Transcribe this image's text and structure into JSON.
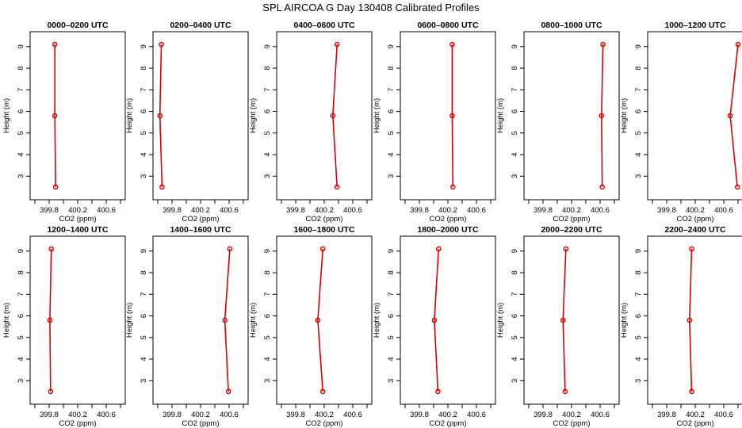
{
  "page": {
    "title": "SPL AIRCOA G  Day 130408  Calibrated Profiles"
  },
  "colors": {
    "series": "#dd0000",
    "axes": "#000000",
    "background": "#ffffff"
  },
  "chart_data": [
    {
      "type": "line",
      "title": "0000–0200 UTC",
      "xlabel": "CO2 (ppm)",
      "ylabel": "Height (m)",
      "xlim": [
        399.6,
        400.8
      ],
      "ylim": [
        2.3,
        9.3
      ],
      "xticks": [
        "399.8",
        "400.2",
        "400.6"
      ],
      "yticks": [
        "3",
        "4",
        "5",
        "6",
        "7",
        "8",
        "9"
      ],
      "grid": false,
      "x": [
        399.88,
        399.88,
        399.89
      ],
      "y": [
        9.1,
        5.8,
        2.5
      ]
    },
    {
      "type": "line",
      "title": "0200–0400 UTC",
      "xlabel": "CO2 (ppm)",
      "ylabel": "Height (m)",
      "xlim": [
        399.6,
        400.8
      ],
      "ylim": [
        2.3,
        9.3
      ],
      "xticks": [
        "399.8",
        "400.2",
        "400.6"
      ],
      "yticks": [
        "3",
        "4",
        "5",
        "6",
        "7",
        "8",
        "9"
      ],
      "grid": false,
      "x": [
        399.65,
        399.63,
        399.66
      ],
      "y": [
        9.1,
        5.8,
        2.5
      ]
    },
    {
      "type": "line",
      "title": "0400–0600 UTC",
      "xlabel": "CO2 (ppm)",
      "ylabel": "Height (m)",
      "xlim": [
        399.6,
        400.8
      ],
      "ylim": [
        2.3,
        9.3
      ],
      "xticks": [
        "399.8",
        "400.2",
        "400.6"
      ],
      "yticks": [
        "3",
        "4",
        "5",
        "6",
        "7",
        "8",
        "9"
      ],
      "grid": false,
      "x": [
        400.38,
        400.32,
        400.38
      ],
      "y": [
        9.1,
        5.8,
        2.5
      ]
    },
    {
      "type": "line",
      "title": "0600–0800 UTC",
      "xlabel": "CO2 (ppm)",
      "ylabel": "Height (m)",
      "xlim": [
        399.6,
        400.8
      ],
      "ylim": [
        2.3,
        9.3
      ],
      "xticks": [
        "399.8",
        "400.2",
        "400.6"
      ],
      "yticks": [
        "3",
        "4",
        "5",
        "6",
        "7",
        "8",
        "9"
      ],
      "grid": false,
      "x": [
        400.26,
        400.26,
        400.27
      ],
      "y": [
        9.1,
        5.8,
        2.5
      ]
    },
    {
      "type": "line",
      "title": "0800–1000 UTC",
      "xlabel": "CO2 (ppm)",
      "ylabel": "Height (m)",
      "xlim": [
        399.6,
        400.8
      ],
      "ylim": [
        2.3,
        9.3
      ],
      "xticks": [
        "399.8",
        "400.2",
        "400.6"
      ],
      "yticks": [
        "3",
        "4",
        "5",
        "6",
        "7",
        "8",
        "9"
      ],
      "grid": false,
      "x": [
        400.64,
        400.62,
        400.63
      ],
      "y": [
        9.1,
        5.8,
        2.5
      ]
    },
    {
      "type": "line",
      "title": "1000–1200 UTC",
      "xlabel": "CO2 (ppm)",
      "ylabel": "Height (m)",
      "xlim": [
        399.6,
        400.8
      ],
      "ylim": [
        2.3,
        9.3
      ],
      "xticks": [
        "399.8",
        "400.2",
        "400.6"
      ],
      "yticks": [
        "3",
        "4",
        "5",
        "6",
        "7",
        "8",
        "9"
      ],
      "grid": false,
      "x": [
        400.8,
        400.69,
        400.79
      ],
      "y": [
        9.1,
        5.8,
        2.5
      ]
    },
    {
      "type": "line",
      "title": "1200–1400 UTC",
      "xlabel": "CO2 (ppm)",
      "ylabel": "Height (m)",
      "xlim": [
        399.6,
        400.8
      ],
      "ylim": [
        2.3,
        9.3
      ],
      "xticks": [
        "399.8",
        "400.2",
        "400.6"
      ],
      "yticks": [
        "3",
        "4",
        "5",
        "6",
        "7",
        "8",
        "9"
      ],
      "grid": false,
      "x": [
        399.83,
        399.81,
        399.82
      ],
      "y": [
        9.1,
        5.8,
        2.5
      ]
    },
    {
      "type": "line",
      "title": "1400–1600 UTC",
      "xlabel": "CO2 (ppm)",
      "ylabel": "Height (m)",
      "xlim": [
        399.6,
        400.8
      ],
      "ylim": [
        2.3,
        9.3
      ],
      "xticks": [
        "399.8",
        "400.2",
        "400.6"
      ],
      "yticks": [
        "3",
        "4",
        "5",
        "6",
        "7",
        "8",
        "9"
      ],
      "grid": false,
      "x": [
        400.61,
        400.54,
        400.59
      ],
      "y": [
        9.1,
        5.8,
        2.5
      ]
    },
    {
      "type": "line",
      "title": "1600–1800 UTC",
      "xlabel": "CO2 (ppm)",
      "ylabel": "Height (m)",
      "xlim": [
        399.6,
        400.8
      ],
      "ylim": [
        2.3,
        9.3
      ],
      "xticks": [
        "399.8",
        "400.2",
        "400.6"
      ],
      "yticks": [
        "3",
        "4",
        "5",
        "6",
        "7",
        "8",
        "9"
      ],
      "grid": false,
      "x": [
        400.18,
        400.11,
        400.18
      ],
      "y": [
        9.1,
        5.8,
        2.5
      ]
    },
    {
      "type": "line",
      "title": "1800–2000 UTC",
      "xlabel": "CO2 (ppm)",
      "ylabel": "Height (m)",
      "xlim": [
        399.6,
        400.8
      ],
      "ylim": [
        2.3,
        9.3
      ],
      "xticks": [
        "399.8",
        "400.2",
        "400.6"
      ],
      "yticks": [
        "3",
        "4",
        "5",
        "6",
        "7",
        "8",
        "9"
      ],
      "grid": false,
      "x": [
        400.07,
        400.01,
        400.06
      ],
      "y": [
        9.1,
        5.8,
        2.5
      ]
    },
    {
      "type": "line",
      "title": "2000–2200 UTC",
      "xlabel": "CO2 (ppm)",
      "ylabel": "Height (m)",
      "xlim": [
        399.6,
        400.8
      ],
      "ylim": [
        2.3,
        9.3
      ],
      "xticks": [
        "399.8",
        "400.2",
        "400.6"
      ],
      "yticks": [
        "3",
        "4",
        "5",
        "6",
        "7",
        "8",
        "9"
      ],
      "grid": false,
      "x": [
        400.12,
        400.08,
        400.11
      ],
      "y": [
        9.1,
        5.8,
        2.5
      ]
    },
    {
      "type": "line",
      "title": "2200–2400 UTC",
      "xlabel": "CO2 (ppm)",
      "ylabel": "Height (m)",
      "xlim": [
        399.6,
        400.8
      ],
      "ylim": [
        2.3,
        9.3
      ],
      "xticks": [
        "399.8",
        "400.2",
        "400.6"
      ],
      "yticks": [
        "3",
        "4",
        "5",
        "6",
        "7",
        "8",
        "9"
      ],
      "grid": false,
      "x": [
        400.15,
        400.12,
        400.15
      ],
      "y": [
        9.1,
        5.8,
        2.5
      ]
    }
  ]
}
